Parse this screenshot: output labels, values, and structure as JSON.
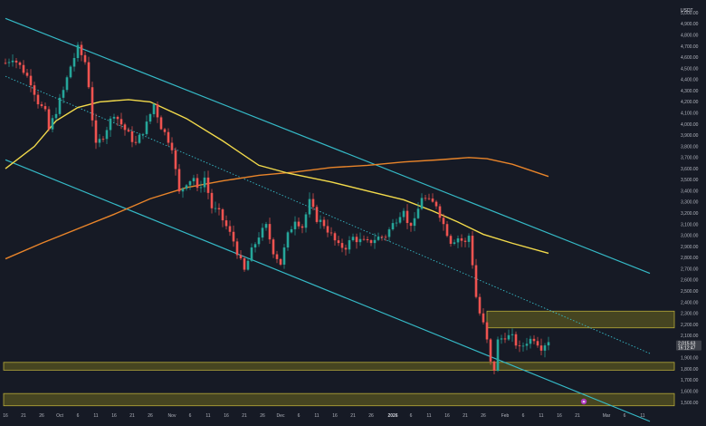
{
  "chart_data": {
    "type": "candlestick",
    "y_unit": "USDT",
    "ylim": [
      1450,
      5100
    ],
    "y_ticks": [
      "5,000.00",
      "4,900.00",
      "4,800.00",
      "4,700.00",
      "4,600.00",
      "4,500.00",
      "4,400.00",
      "4,300.00",
      "4,200.00",
      "4,100.00",
      "4,000.00",
      "3,900.00",
      "3,800.00",
      "3,700.00",
      "3,600.00",
      "3,500.00",
      "3,400.00",
      "3,300.00",
      "3,200.00",
      "3,100.00",
      "3,000.00",
      "2,900.00",
      "2,800.00",
      "2,700.00",
      "2,600.00",
      "2,500.00",
      "2,400.00",
      "2,300.00",
      "2,200.00",
      "2,100.00",
      "2,000.00",
      "1,900.00",
      "1,800.00",
      "1,700.00",
      "1,600.00",
      "1,500.00"
    ],
    "x_ticks": [
      {
        "label": "16",
        "day": 0,
        "bold": false
      },
      {
        "label": "21",
        "day": 5,
        "bold": false
      },
      {
        "label": "26",
        "day": 10,
        "bold": false
      },
      {
        "label": "Oct",
        "day": 15,
        "bold": false
      },
      {
        "label": "6",
        "day": 20,
        "bold": false
      },
      {
        "label": "11",
        "day": 25,
        "bold": false
      },
      {
        "label": "16",
        "day": 30,
        "bold": false
      },
      {
        "label": "21",
        "day": 35,
        "bold": false
      },
      {
        "label": "26",
        "day": 40,
        "bold": false
      },
      {
        "label": "Nov",
        "day": 46,
        "bold": false
      },
      {
        "label": "6",
        "day": 51,
        "bold": false
      },
      {
        "label": "11",
        "day": 56,
        "bold": false
      },
      {
        "label": "16",
        "day": 61,
        "bold": false
      },
      {
        "label": "21",
        "day": 66,
        "bold": false
      },
      {
        "label": "26",
        "day": 71,
        "bold": false
      },
      {
        "label": "Dec",
        "day": 76,
        "bold": false
      },
      {
        "label": "6",
        "day": 81,
        "bold": false
      },
      {
        "label": "11",
        "day": 86,
        "bold": false
      },
      {
        "label": "16",
        "day": 91,
        "bold": false
      },
      {
        "label": "21",
        "day": 96,
        "bold": false
      },
      {
        "label": "26",
        "day": 101,
        "bold": false
      },
      {
        "label": "2026",
        "day": 107,
        "bold": true
      },
      {
        "label": "6",
        "day": 112,
        "bold": false
      },
      {
        "label": "11",
        "day": 117,
        "bold": false
      },
      {
        "label": "16",
        "day": 122,
        "bold": false
      },
      {
        "label": "21",
        "day": 127,
        "bold": false
      },
      {
        "label": "26",
        "day": 132,
        "bold": false
      },
      {
        "label": "Feb",
        "day": 138,
        "bold": false
      },
      {
        "label": "6",
        "day": 143,
        "bold": false
      },
      {
        "label": "11",
        "day": 148,
        "bold": false
      },
      {
        "label": "16",
        "day": 153,
        "bold": false
      },
      {
        "label": "21",
        "day": 158,
        "bold": false
      },
      {
        "label": "Mar",
        "day": 166,
        "bold": false
      },
      {
        "label": "6",
        "day": 171,
        "bold": false
      },
      {
        "label": "11",
        "day": 176,
        "bold": false
      }
    ],
    "close_keyframes": [
      [
        0,
        4550
      ],
      [
        2,
        4600
      ],
      [
        5,
        4480
      ],
      [
        7,
        4380
      ],
      [
        9,
        4200
      ],
      [
        11,
        4100
      ],
      [
        12,
        3950
      ],
      [
        14,
        4120
      ],
      [
        16,
        4300
      ],
      [
        18,
        4520
      ],
      [
        20,
        4680
      ],
      [
        22,
        4560
      ],
      [
        23,
        4350
      ],
      [
        24,
        4050
      ],
      [
        25,
        3800
      ],
      [
        27,
        3900
      ],
      [
        30,
        4100
      ],
      [
        33,
        3950
      ],
      [
        36,
        3820
      ],
      [
        39,
        4000
      ],
      [
        41,
        4180
      ],
      [
        43,
        3980
      ],
      [
        46,
        3800
      ],
      [
        47,
        3580
      ],
      [
        48,
        3380
      ],
      [
        50,
        3480
      ],
      [
        52,
        3520
      ],
      [
        53,
        3400
      ],
      [
        55,
        3520
      ],
      [
        57,
        3250
      ],
      [
        59,
        3200
      ],
      [
        61,
        3080
      ],
      [
        63,
        2950
      ],
      [
        65,
        2760
      ],
      [
        66,
        2680
      ],
      [
        68,
        2860
      ],
      [
        70,
        3000
      ],
      [
        72,
        3080
      ],
      [
        74,
        2860
      ],
      [
        76,
        2750
      ],
      [
        78,
        3000
      ],
      [
        80,
        3150
      ],
      [
        82,
        3080
      ],
      [
        84,
        3300
      ],
      [
        86,
        3150
      ],
      [
        88,
        3100
      ],
      [
        90,
        3000
      ],
      [
        92,
        2900
      ],
      [
        94,
        2900
      ],
      [
        96,
        2980
      ],
      [
        98,
        2950
      ],
      [
        100,
        2930
      ],
      [
        102,
        2970
      ],
      [
        105,
        3000
      ],
      [
        108,
        3150
      ],
      [
        110,
        3250
      ],
      [
        111,
        3100
      ],
      [
        113,
        3120
      ],
      [
        115,
        3350
      ],
      [
        117,
        3300
      ],
      [
        119,
        3280
      ],
      [
        121,
        3100
      ],
      [
        123,
        2950
      ],
      [
        125,
        2980
      ],
      [
        127,
        2930
      ],
      [
        128,
        3000
      ],
      [
        129,
        2750
      ],
      [
        130,
        2450
      ],
      [
        131,
        2300
      ],
      [
        132,
        2200
      ],
      [
        133,
        2050
      ],
      [
        134,
        1850
      ],
      [
        135,
        1800
      ],
      [
        136,
        2050
      ],
      [
        138,
        2100
      ],
      [
        140,
        2080
      ],
      [
        142,
        1980
      ],
      [
        144,
        2050
      ],
      [
        146,
        2080
      ],
      [
        148,
        2000
      ],
      [
        150,
        2060
      ]
    ],
    "last_price": "2,015.63",
    "countdown": "16:12:47",
    "support_zones": [
      {
        "low": 2170,
        "high": 2320
      },
      {
        "low": 1790,
        "high": 1860
      },
      {
        "low": 1470,
        "high": 1580
      }
    ],
    "ma_fast": [
      [
        0,
        3600
      ],
      [
        8,
        3800
      ],
      [
        14,
        4030
      ],
      [
        20,
        4150
      ],
      [
        26,
        4200
      ],
      [
        34,
        4220
      ],
      [
        40,
        4200
      ],
      [
        50,
        4050
      ],
      [
        60,
        3850
      ],
      [
        70,
        3630
      ],
      [
        78,
        3560
      ],
      [
        90,
        3480
      ],
      [
        100,
        3400
      ],
      [
        110,
        3320
      ],
      [
        118,
        3220
      ],
      [
        125,
        3120
      ],
      [
        132,
        3010
      ],
      [
        140,
        2930
      ],
      [
        150,
        2840
      ]
    ],
    "ma_slow": [
      [
        0,
        2790
      ],
      [
        10,
        2930
      ],
      [
        20,
        3060
      ],
      [
        30,
        3190
      ],
      [
        40,
        3330
      ],
      [
        50,
        3430
      ],
      [
        60,
        3490
      ],
      [
        70,
        3540
      ],
      [
        80,
        3570
      ],
      [
        90,
        3610
      ],
      [
        100,
        3630
      ],
      [
        110,
        3660
      ],
      [
        120,
        3680
      ],
      [
        128,
        3700
      ],
      [
        133,
        3690
      ],
      [
        140,
        3640
      ],
      [
        150,
        3530
      ]
    ],
    "channel_upper": [
      [
        0,
        4950
      ],
      [
        178,
        2660
      ]
    ],
    "channel_lower": [
      [
        0,
        3680
      ],
      [
        178,
        1330
      ]
    ],
    "channel_mid": [
      [
        0,
        4430
      ],
      [
        178,
        1940
      ]
    ]
  }
}
